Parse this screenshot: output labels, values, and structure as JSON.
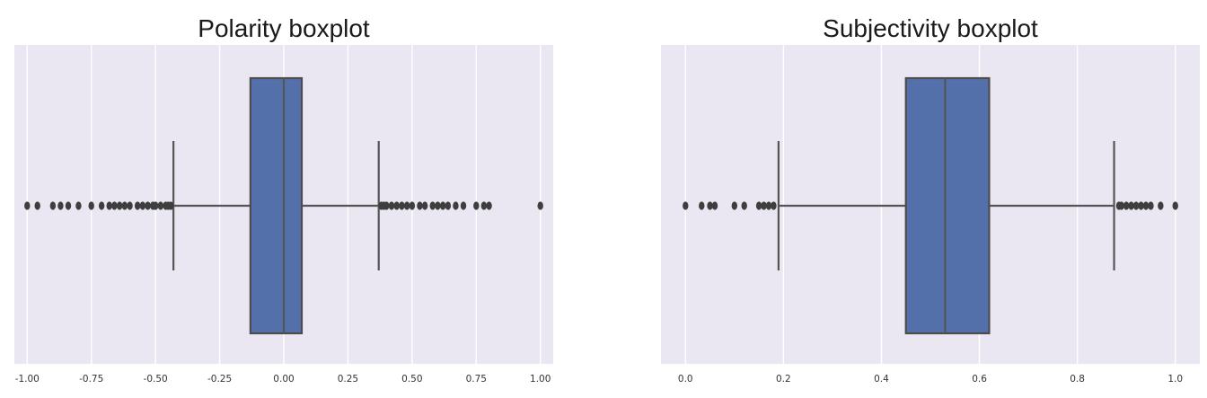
{
  "chart_data": [
    {
      "type": "boxplot",
      "title": "Polarity boxplot",
      "orientation": "horizontal",
      "xlim": [
        -1.05,
        1.05
      ],
      "grid": true,
      "ticks": [
        "-1.00",
        "-0.75",
        "-0.50",
        "-0.25",
        "0.00",
        "0.25",
        "0.50",
        "0.75",
        "1.00"
      ],
      "tick_values": [
        -1.0,
        -0.75,
        -0.5,
        -0.25,
        0.0,
        0.25,
        0.5,
        0.75,
        1.0
      ],
      "stats": {
        "whisker_low": -0.43,
        "q1": -0.13,
        "median": 0.0,
        "q3": 0.07,
        "whisker_high": 0.37
      },
      "outliers": [
        -1.0,
        -0.96,
        -0.9,
        -0.87,
        -0.84,
        -0.8,
        -0.75,
        -0.71,
        -0.68,
        -0.66,
        -0.64,
        -0.62,
        -0.6,
        -0.57,
        -0.55,
        -0.53,
        -0.51,
        -0.5,
        -0.48,
        -0.46,
        -0.45,
        -0.44,
        0.38,
        0.39,
        0.4,
        0.42,
        0.44,
        0.46,
        0.48,
        0.5,
        0.53,
        0.55,
        0.58,
        0.6,
        0.62,
        0.64,
        0.67,
        0.7,
        0.75,
        0.78,
        0.8,
        1.0
      ]
    },
    {
      "type": "boxplot",
      "title": "Subjectivity boxplot",
      "orientation": "horizontal",
      "xlim": [
        -0.05,
        1.05
      ],
      "grid": true,
      "ticks": [
        "0.0",
        "0.2",
        "0.4",
        "0.6",
        "0.8",
        "1.0"
      ],
      "tick_values": [
        0.0,
        0.2,
        0.4,
        0.6,
        0.8,
        1.0
      ],
      "stats": {
        "whisker_low": 0.19,
        "q1": 0.45,
        "median": 0.53,
        "q3": 0.62,
        "whisker_high": 0.875
      },
      "outliers": [
        0.0,
        0.033,
        0.05,
        0.06,
        0.1,
        0.12,
        0.15,
        0.16,
        0.17,
        0.18,
        0.885,
        0.89,
        0.9,
        0.91,
        0.92,
        0.93,
        0.94,
        0.95,
        0.97,
        1.0
      ]
    }
  ],
  "colors": {
    "panel_background": "#eae7f2",
    "box_fill": "#5470ab",
    "line": "#555555"
  }
}
